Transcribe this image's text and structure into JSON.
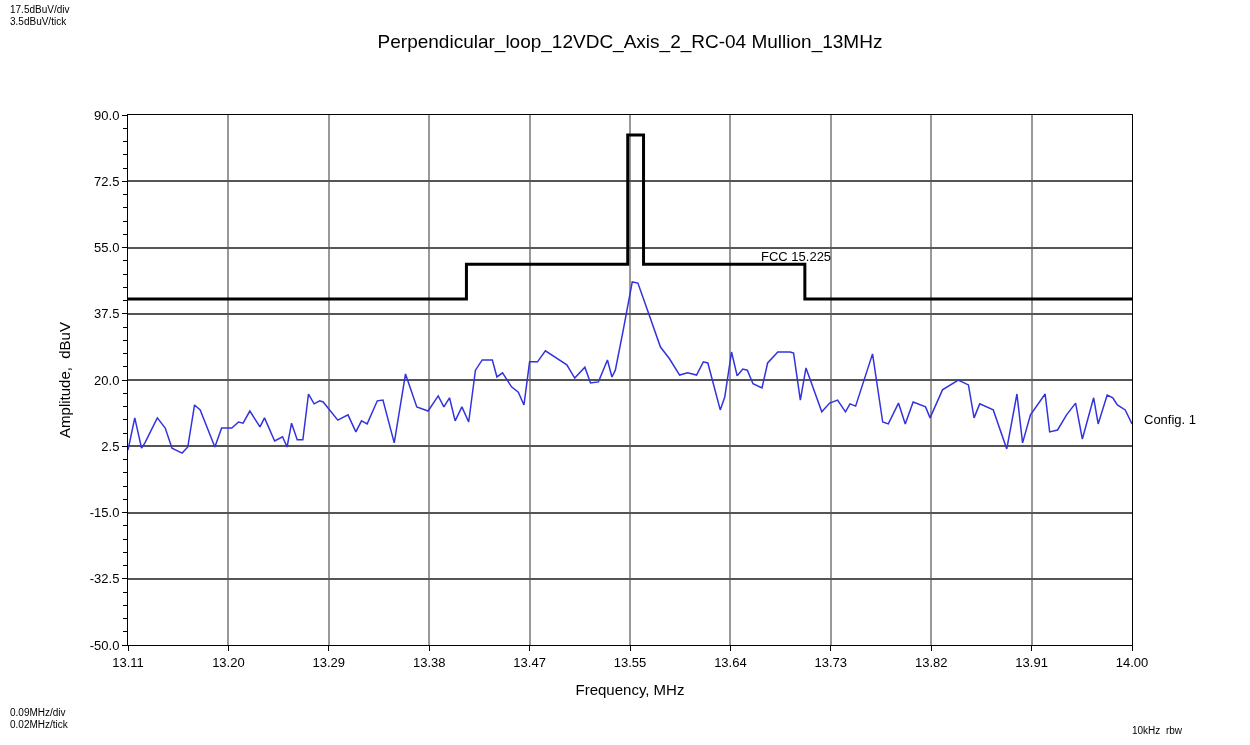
{
  "chart_data": {
    "type": "line",
    "title": "Perpendicular_loop_12VDC_Axis_2_RC-04 Mullion_13MHz",
    "xlabel": "Frequency, MHz",
    "ylabel": "Amplitude,  dBuV",
    "annotations": [
      "17.5dBuV/div",
      "3.5dBuV/tick",
      "0.09MHz/div",
      "0.02MHz/tick",
      "10kHz  rbw"
    ],
    "xlim": [
      13.11,
      14.0
    ],
    "ylim": [
      -50,
      90
    ],
    "xticks": [
      13.11,
      {
        "value": 13.199,
        "label": "13.20"
      },
      {
        "value": 13.288,
        "label": "13.29"
      },
      {
        "value": 13.377,
        "label": "13.38"
      },
      {
        "value": 13.466,
        "label": "13.47"
      },
      {
        "value": 13.555,
        "label": "13.55"
      },
      {
        "value": 13.644,
        "label": "13.64"
      },
      {
        "value": 13.733,
        "label": "13.73"
      },
      {
        "value": 13.822,
        "label": "13.82"
      },
      {
        "value": 13.911,
        "label": "13.91"
      },
      {
        "value": 14.0,
        "label": "14.00"
      }
    ],
    "yticks": [
      {
        "value": -50,
        "label": "-50.0"
      },
      {
        "value": -32.5,
        "label": "-32.5"
      },
      {
        "value": -15,
        "label": "-15.0"
      },
      {
        "value": 2.5,
        "label": "2.5"
      },
      {
        "value": 20,
        "label": "20.0"
      },
      {
        "value": 37.5,
        "label": "37.5"
      },
      {
        "value": 55,
        "label": "55.0"
      },
      {
        "value": 72.5,
        "label": "72.5"
      },
      {
        "value": 90,
        "label": "90.0"
      }
    ],
    "grid": true,
    "legend": false,
    "marker": "none",
    "line_style": "solid",
    "series": [
      {
        "name": "FCC 15.225",
        "color": "#000000",
        "x": [
          13.11,
          13.41,
          13.41,
          13.553,
          13.553,
          13.567,
          13.567,
          13.71,
          13.71,
          14.0
        ],
        "values": [
          41.4,
          41.4,
          50.6,
          50.6,
          84.7,
          84.7,
          50.6,
          50.6,
          41.4,
          41.4
        ]
      },
      {
        "name": "Config. 1",
        "color": "#3333dd",
        "x": [
          13.11,
          13.116,
          13.122,
          13.125,
          13.136,
          13.143,
          13.149,
          13.158,
          13.163,
          13.169,
          13.174,
          13.187,
          13.193,
          13.202,
          13.208,
          13.212,
          13.218,
          13.227,
          13.231,
          13.24,
          13.247,
          13.251,
          13.255,
          13.26,
          13.265,
          13.27,
          13.275,
          13.28,
          13.283,
          13.296,
          13.305,
          13.312,
          13.317,
          13.322,
          13.331,
          13.336,
          13.346,
          13.356,
          13.366,
          13.376,
          13.385,
          13.39,
          13.395,
          13.4,
          13.406,
          13.412,
          13.418,
          13.424,
          13.433,
          13.437,
          13.442,
          13.45,
          13.456,
          13.461,
          13.466,
          13.473,
          13.48,
          13.499,
          13.506,
          13.515,
          13.52,
          13.527,
          13.535,
          13.539,
          13.542,
          13.549,
          13.557,
          13.562,
          13.571,
          13.582,
          13.59,
          13.599,
          13.606,
          13.614,
          13.62,
          13.624,
          13.635,
          13.639,
          13.645,
          13.65,
          13.655,
          13.659,
          13.664,
          13.672,
          13.677,
          13.686,
          13.697,
          13.7,
          13.706,
          13.711,
          13.725,
          13.732,
          13.739,
          13.746,
          13.75,
          13.755,
          13.77,
          13.779,
          13.784,
          13.793,
          13.799,
          13.806,
          13.817,
          13.821,
          13.832,
          13.846,
          13.855,
          13.86,
          13.865,
          13.877,
          13.889,
          13.898,
          13.903,
          13.91,
          13.923,
          13.927,
          13.934,
          13.942,
          13.95,
          13.956,
          13.966,
          13.97,
          13.978,
          13.983,
          13.987,
          13.994,
          14.0
        ],
        "values": [
          1.5,
          10.0,
          2.0,
          3.4,
          10.0,
          7.3,
          2.0,
          0.7,
          2.3,
          13.4,
          12.1,
          2.3,
          7.3,
          7.3,
          8.9,
          8.6,
          11.8,
          7.6,
          10.0,
          3.9,
          5.0,
          2.3,
          8.6,
          4.2,
          4.2,
          16.3,
          13.7,
          14.5,
          14.2,
          9.4,
          10.8,
          6.3,
          9.2,
          8.4,
          14.5,
          14.7,
          3.4,
          21.6,
          12.9,
          11.8,
          15.8,
          12.9,
          15.3,
          9.2,
          12.9,
          8.9,
          22.6,
          25.3,
          25.3,
          20.8,
          21.9,
          18.2,
          16.8,
          13.4,
          24.8,
          24.8,
          27.7,
          24.0,
          20.5,
          23.4,
          19.2,
          19.5,
          25.3,
          20.8,
          22.6,
          33.2,
          45.9,
          45.6,
          38.0,
          28.7,
          25.6,
          21.3,
          21.9,
          21.3,
          24.8,
          24.5,
          12.1,
          15.5,
          27.4,
          21.1,
          22.9,
          22.6,
          19.0,
          17.9,
          24.5,
          27.4,
          27.4,
          27.1,
          14.7,
          23.2,
          11.6,
          13.9,
          14.7,
          11.6,
          13.7,
          13.1,
          26.9,
          8.9,
          8.4,
          13.9,
          8.4,
          14.2,
          12.9,
          10.0,
          17.4,
          20.0,
          18.7,
          10.0,
          13.7,
          12.1,
          1.8,
          16.3,
          3.4,
          10.8,
          16.3,
          6.3,
          6.8,
          10.8,
          13.9,
          4.4,
          15.3,
          8.4,
          16.0,
          15.3,
          13.4,
          12.1,
          8.4
        ]
      }
    ]
  }
}
